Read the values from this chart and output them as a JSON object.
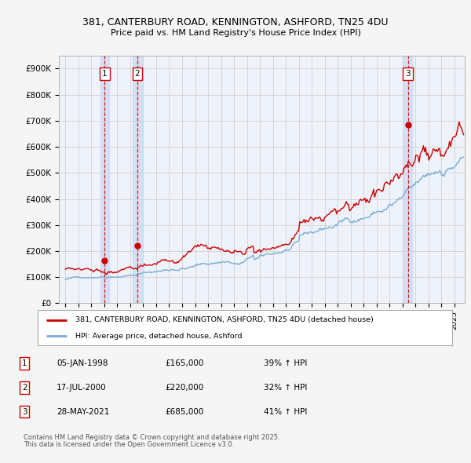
{
  "title_line1": "381, CANTERBURY ROAD, KENNINGTON, ASHFORD, TN25 4DU",
  "title_line2": "Price paid vs. HM Land Registry's House Price Index (HPI)",
  "legend_label_red": "381, CANTERBURY ROAD, KENNINGTON, ASHFORD, TN25 4DU (detached house)",
  "legend_label_blue": "HPI: Average price, detached house, Ashford",
  "footer_line1": "Contains HM Land Registry data © Crown copyright and database right 2025.",
  "footer_line2": "This data is licensed under the Open Government Licence v3.0.",
  "table_rows": [
    {
      "num": "1",
      "date": "05-JAN-1998",
      "price": "£165,000",
      "change": "39% ↑ HPI"
    },
    {
      "num": "2",
      "date": "17-JUL-2000",
      "price": "£220,000",
      "change": "32% ↑ HPI"
    },
    {
      "num": "3",
      "date": "28-MAY-2021",
      "price": "£685,000",
      "change": "41% ↑ HPI"
    }
  ],
  "sale_markers": [
    {
      "label": "1",
      "year": 1998.03,
      "value": 165000
    },
    {
      "label": "2",
      "year": 2000.54,
      "value": 220000
    },
    {
      "label": "3",
      "year": 2021.41,
      "value": 685000
    }
  ],
  "vline_years": [
    1998.03,
    2000.54,
    2021.41
  ],
  "xlim": [
    1994.5,
    2025.8
  ],
  "ylim": [
    0,
    950000
  ],
  "yticks": [
    0,
    100000,
    200000,
    300000,
    400000,
    500000,
    600000,
    700000,
    800000,
    900000
  ],
  "ytick_labels": [
    "£0",
    "£100K",
    "£200K",
    "£300K",
    "£400K",
    "£500K",
    "£600K",
    "£700K",
    "£800K",
    "£900K"
  ],
  "plot_bg_color": "#eef2fb",
  "red_color": "#cc0000",
  "blue_color": "#7aadd4",
  "grid_color": "#cccccc",
  "vspan_color": "#ccd8f0",
  "fig_bg_color": "#f5f5f5"
}
